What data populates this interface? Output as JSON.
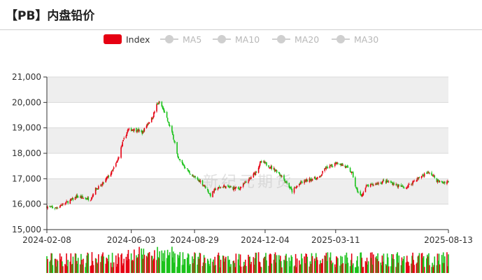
{
  "page": {
    "title": "【PB】内盘铅价"
  },
  "legend": [
    {
      "label": "Index",
      "active": true
    },
    {
      "label": "MA5",
      "active": false
    },
    {
      "label": "MA10",
      "active": false
    },
    {
      "label": "MA20",
      "active": false
    },
    {
      "label": "MA30",
      "active": false
    }
  ],
  "watermark": "新纪元期货",
  "colors": {
    "up": "#e60012",
    "down": "#1bc21b",
    "band": "#eeeeee",
    "grid": "#d9d9d9",
    "axis": "#333333"
  },
  "chart_data": {
    "type": "candlestick",
    "title": "【PB】内盘铅价",
    "series_name": "Index",
    "ylim": [
      15000,
      21000
    ],
    "y_ticks": [
      "15,000",
      "16,000",
      "17,000",
      "18,000",
      "19,000",
      "20,000",
      "21,000"
    ],
    "x_range": [
      "2024-02-08",
      "2025-08-13"
    ],
    "x_ticks": [
      "2024-02-08",
      "2024-06-03",
      "2024-08-29",
      "2024-12-04",
      "2025-03-11",
      "2025-08-13"
    ],
    "close_path": [
      [
        "2024-02-08",
        15900
      ],
      [
        "2024-02-20",
        15850
      ],
      [
        "2024-03-01",
        16000
      ],
      [
        "2024-03-12",
        16150
      ],
      [
        "2024-03-20",
        16300
      ],
      [
        "2024-03-28",
        16250
      ],
      [
        "2024-04-08",
        16200
      ],
      [
        "2024-04-15",
        16600
      ],
      [
        "2024-04-22",
        16700
      ],
      [
        "2024-04-30",
        17000
      ],
      [
        "2024-05-08",
        17300
      ],
      [
        "2024-05-15",
        17700
      ],
      [
        "2024-05-22",
        18400
      ],
      [
        "2024-05-29",
        18900
      ],
      [
        "2024-06-05",
        18950
      ],
      [
        "2024-06-12",
        18900
      ],
      [
        "2024-06-18",
        18800
      ],
      [
        "2024-06-25",
        19150
      ],
      [
        "2024-07-02",
        19400
      ],
      [
        "2024-07-08",
        19900
      ],
      [
        "2024-07-12",
        20000
      ],
      [
        "2024-07-18",
        19650
      ],
      [
        "2024-07-24",
        19200
      ],
      [
        "2024-07-29",
        18800
      ],
      [
        "2024-08-02",
        18400
      ],
      [
        "2024-08-06",
        17800
      ],
      [
        "2024-08-12",
        17600
      ],
      [
        "2024-08-20",
        17300
      ],
      [
        "2024-08-28",
        17050
      ],
      [
        "2024-09-06",
        16900
      ],
      [
        "2024-09-12",
        16700
      ],
      [
        "2024-09-20",
        16350
      ],
      [
        "2024-09-27",
        16600
      ],
      [
        "2024-10-08",
        16700
      ],
      [
        "2024-10-18",
        16650
      ],
      [
        "2024-10-28",
        16600
      ],
      [
        "2024-11-06",
        16800
      ],
      [
        "2024-11-15",
        17050
      ],
      [
        "2024-11-22",
        17300
      ],
      [
        "2024-11-28",
        17650
      ],
      [
        "2024-12-04",
        17600
      ],
      [
        "2024-12-12",
        17450
      ],
      [
        "2024-12-20",
        17300
      ],
      [
        "2024-12-27",
        17100
      ],
      [
        "2025-01-06",
        16700
      ],
      [
        "2025-01-10",
        16500
      ],
      [
        "2025-01-20",
        16800
      ],
      [
        "2025-01-27",
        16900
      ],
      [
        "2025-02-07",
        17000
      ],
      [
        "2025-02-17",
        17050
      ],
      [
        "2025-02-24",
        17400
      ],
      [
        "2025-03-05",
        17500
      ],
      [
        "2025-03-12",
        17650
      ],
      [
        "2025-03-20",
        17550
      ],
      [
        "2025-03-28",
        17400
      ],
      [
        "2025-04-03",
        17200
      ],
      [
        "2025-04-08",
        16600
      ],
      [
        "2025-04-15",
        16300
      ],
      [
        "2025-04-22",
        16700
      ],
      [
        "2025-05-06",
        16800
      ],
      [
        "2025-05-16",
        16900
      ],
      [
        "2025-05-26",
        16850
      ],
      [
        "2025-06-06",
        16700
      ],
      [
        "2025-06-16",
        16650
      ],
      [
        "2025-06-26",
        16900
      ],
      [
        "2025-07-07",
        17100
      ],
      [
        "2025-07-15",
        17250
      ],
      [
        "2025-07-22",
        17150
      ],
      [
        "2025-07-29",
        16900
      ],
      [
        "2025-08-05",
        16850
      ],
      [
        "2025-08-13",
        16900
      ]
    ]
  }
}
